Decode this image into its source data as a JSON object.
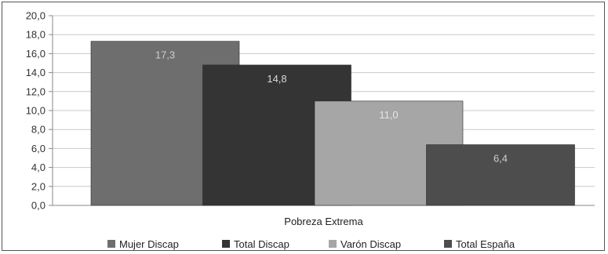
{
  "chart_data": {
    "type": "bar",
    "categories": [
      "Pobreza Extrema"
    ],
    "series": [
      {
        "name": "Mujer Discap",
        "values": [
          17.3
        ],
        "label": "17,3",
        "color": "#6e6e6e",
        "label_color": "#cfcfcf"
      },
      {
        "name": "Total Discap",
        "values": [
          14.8
        ],
        "label": "14,8",
        "color": "#343434",
        "label_color": "#d9d9d9"
      },
      {
        "name": "Varón Discap",
        "values": [
          11.0
        ],
        "label": "11,0",
        "color": "#a6a6a6",
        "label_color": "#e6e6e6"
      },
      {
        "name": "Total España",
        "values": [
          6.4
        ],
        "label": "6,4",
        "color": "#4d4d4d",
        "label_color": "#cfcfcf"
      }
    ],
    "ylim": [
      0,
      20
    ],
    "yticks": [
      "0,0",
      "2,0",
      "4,0",
      "6,0",
      "8,0",
      "10,0",
      "12,0",
      "14,0",
      "16,0",
      "18,0",
      "20,0"
    ],
    "grid": true,
    "legend_position": "bottom",
    "title": "",
    "xlabel": "",
    "ylabel": ""
  }
}
